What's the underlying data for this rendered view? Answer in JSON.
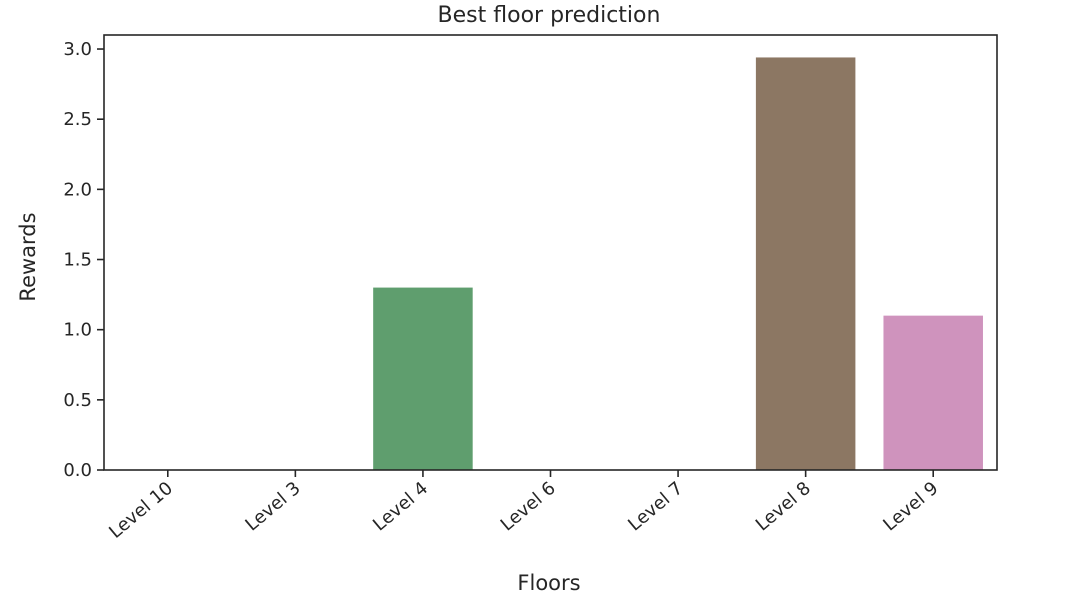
{
  "chart_data": {
    "type": "bar",
    "title": "Best floor prediction",
    "xlabel": "Floors",
    "ylabel": "Rewards",
    "categories": [
      "Level 10",
      "Level 3",
      "Level 4",
      "Level 6",
      "Level 7",
      "Level 8",
      "Level 9"
    ],
    "values": [
      0.0,
      0.0,
      1.3,
      0.0,
      0.0,
      2.94,
      1.1
    ],
    "colors": [
      "#4c72b0",
      "#dd8452",
      "#5f9e6e",
      "#c44e52",
      "#8172b3",
      "#8c7763",
      "#cf93bd"
    ],
    "ylim": [
      0,
      3.1
    ],
    "yticks": [
      0.0,
      0.5,
      1.0,
      1.5,
      2.0,
      2.5,
      3.0
    ],
    "ytick_labels": [
      "0.0",
      "0.5",
      "1.0",
      "1.5",
      "2.0",
      "2.5",
      "3.0"
    ],
    "grid": false,
    "legend": "none"
  }
}
